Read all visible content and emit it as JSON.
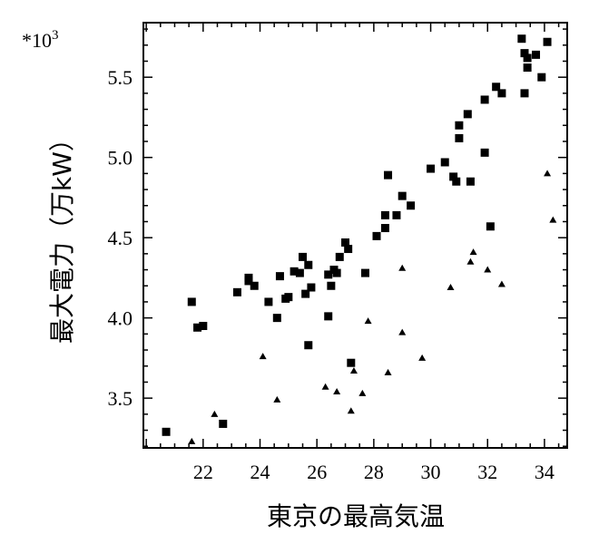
{
  "chart_data": {
    "type": "scatter",
    "xlabel": "東京の最高気温",
    "ylabel": "最大電力（万kW）",
    "y_multiplier_label": "*10",
    "y_multiplier_exp": "3",
    "xlim": [
      19.9,
      34.8
    ],
    "ylim": [
      3.19,
      5.84
    ],
    "x_ticks": [
      22,
      24,
      26,
      28,
      30,
      32,
      34
    ],
    "y_ticks": [
      3.5,
      4.0,
      4.5,
      5.0,
      5.5
    ],
    "x_tick_labels": [
      "22",
      "24",
      "26",
      "28",
      "30",
      "32",
      "34"
    ],
    "y_tick_labels": [
      "3.5",
      "4.0",
      "4.5",
      "5.0",
      "5.5"
    ],
    "grid": false,
    "series": [
      {
        "marker": "square",
        "color": "#000000",
        "points": [
          [
            20.7,
            3.29
          ],
          [
            21.6,
            4.1
          ],
          [
            21.8,
            3.94
          ],
          [
            22.0,
            3.95
          ],
          [
            22.7,
            3.34
          ],
          [
            23.2,
            4.16
          ],
          [
            23.6,
            4.25
          ],
          [
            23.6,
            4.23
          ],
          [
            23.8,
            4.2
          ],
          [
            24.3,
            4.1
          ],
          [
            24.6,
            4.0
          ],
          [
            24.7,
            4.26
          ],
          [
            24.9,
            4.12
          ],
          [
            25.0,
            4.13
          ],
          [
            25.2,
            4.29
          ],
          [
            25.4,
            4.28
          ],
          [
            25.5,
            4.38
          ],
          [
            25.6,
            4.15
          ],
          [
            25.7,
            4.33
          ],
          [
            25.7,
            3.83
          ],
          [
            25.8,
            4.19
          ],
          [
            26.4,
            4.01
          ],
          [
            26.4,
            4.27
          ],
          [
            26.5,
            4.2
          ],
          [
            26.6,
            4.3
          ],
          [
            26.7,
            4.28
          ],
          [
            26.8,
            4.38
          ],
          [
            27.0,
            4.47
          ],
          [
            27.1,
            4.43
          ],
          [
            27.2,
            3.72
          ],
          [
            27.7,
            4.28
          ],
          [
            28.1,
            4.51
          ],
          [
            28.4,
            4.56
          ],
          [
            28.4,
            4.64
          ],
          [
            28.5,
            4.89
          ],
          [
            28.8,
            4.64
          ],
          [
            29.0,
            4.76
          ],
          [
            29.3,
            4.7
          ],
          [
            30.0,
            4.93
          ],
          [
            30.5,
            4.97
          ],
          [
            30.8,
            4.88
          ],
          [
            30.9,
            4.85
          ],
          [
            31.0,
            5.12
          ],
          [
            31.0,
            5.2
          ],
          [
            31.3,
            5.27
          ],
          [
            31.4,
            4.85
          ],
          [
            31.9,
            5.36
          ],
          [
            31.9,
            5.03
          ],
          [
            32.1,
            4.57
          ],
          [
            32.3,
            5.44
          ],
          [
            32.5,
            5.4
          ],
          [
            33.2,
            5.74
          ],
          [
            33.3,
            5.65
          ],
          [
            33.3,
            5.4
          ],
          [
            33.4,
            5.62
          ],
          [
            33.4,
            5.56
          ],
          [
            33.7,
            5.64
          ],
          [
            33.9,
            5.5
          ],
          [
            34.1,
            5.72
          ]
        ]
      },
      {
        "marker": "triangle",
        "color": "#000000",
        "points": [
          [
            21.6,
            3.23
          ],
          [
            22.4,
            3.4
          ],
          [
            24.1,
            3.76
          ],
          [
            24.6,
            3.49
          ],
          [
            26.3,
            3.57
          ],
          [
            26.7,
            3.54
          ],
          [
            27.2,
            3.42
          ],
          [
            27.3,
            3.67
          ],
          [
            27.6,
            3.53
          ],
          [
            27.8,
            3.98
          ],
          [
            28.5,
            3.66
          ],
          [
            29.0,
            4.31
          ],
          [
            29.0,
            3.91
          ],
          [
            29.7,
            3.75
          ],
          [
            30.7,
            4.19
          ],
          [
            31.4,
            4.35
          ],
          [
            31.5,
            4.41
          ],
          [
            32.0,
            4.3
          ],
          [
            32.5,
            4.21
          ],
          [
            34.1,
            4.9
          ],
          [
            34.3,
            4.61
          ]
        ]
      }
    ]
  }
}
